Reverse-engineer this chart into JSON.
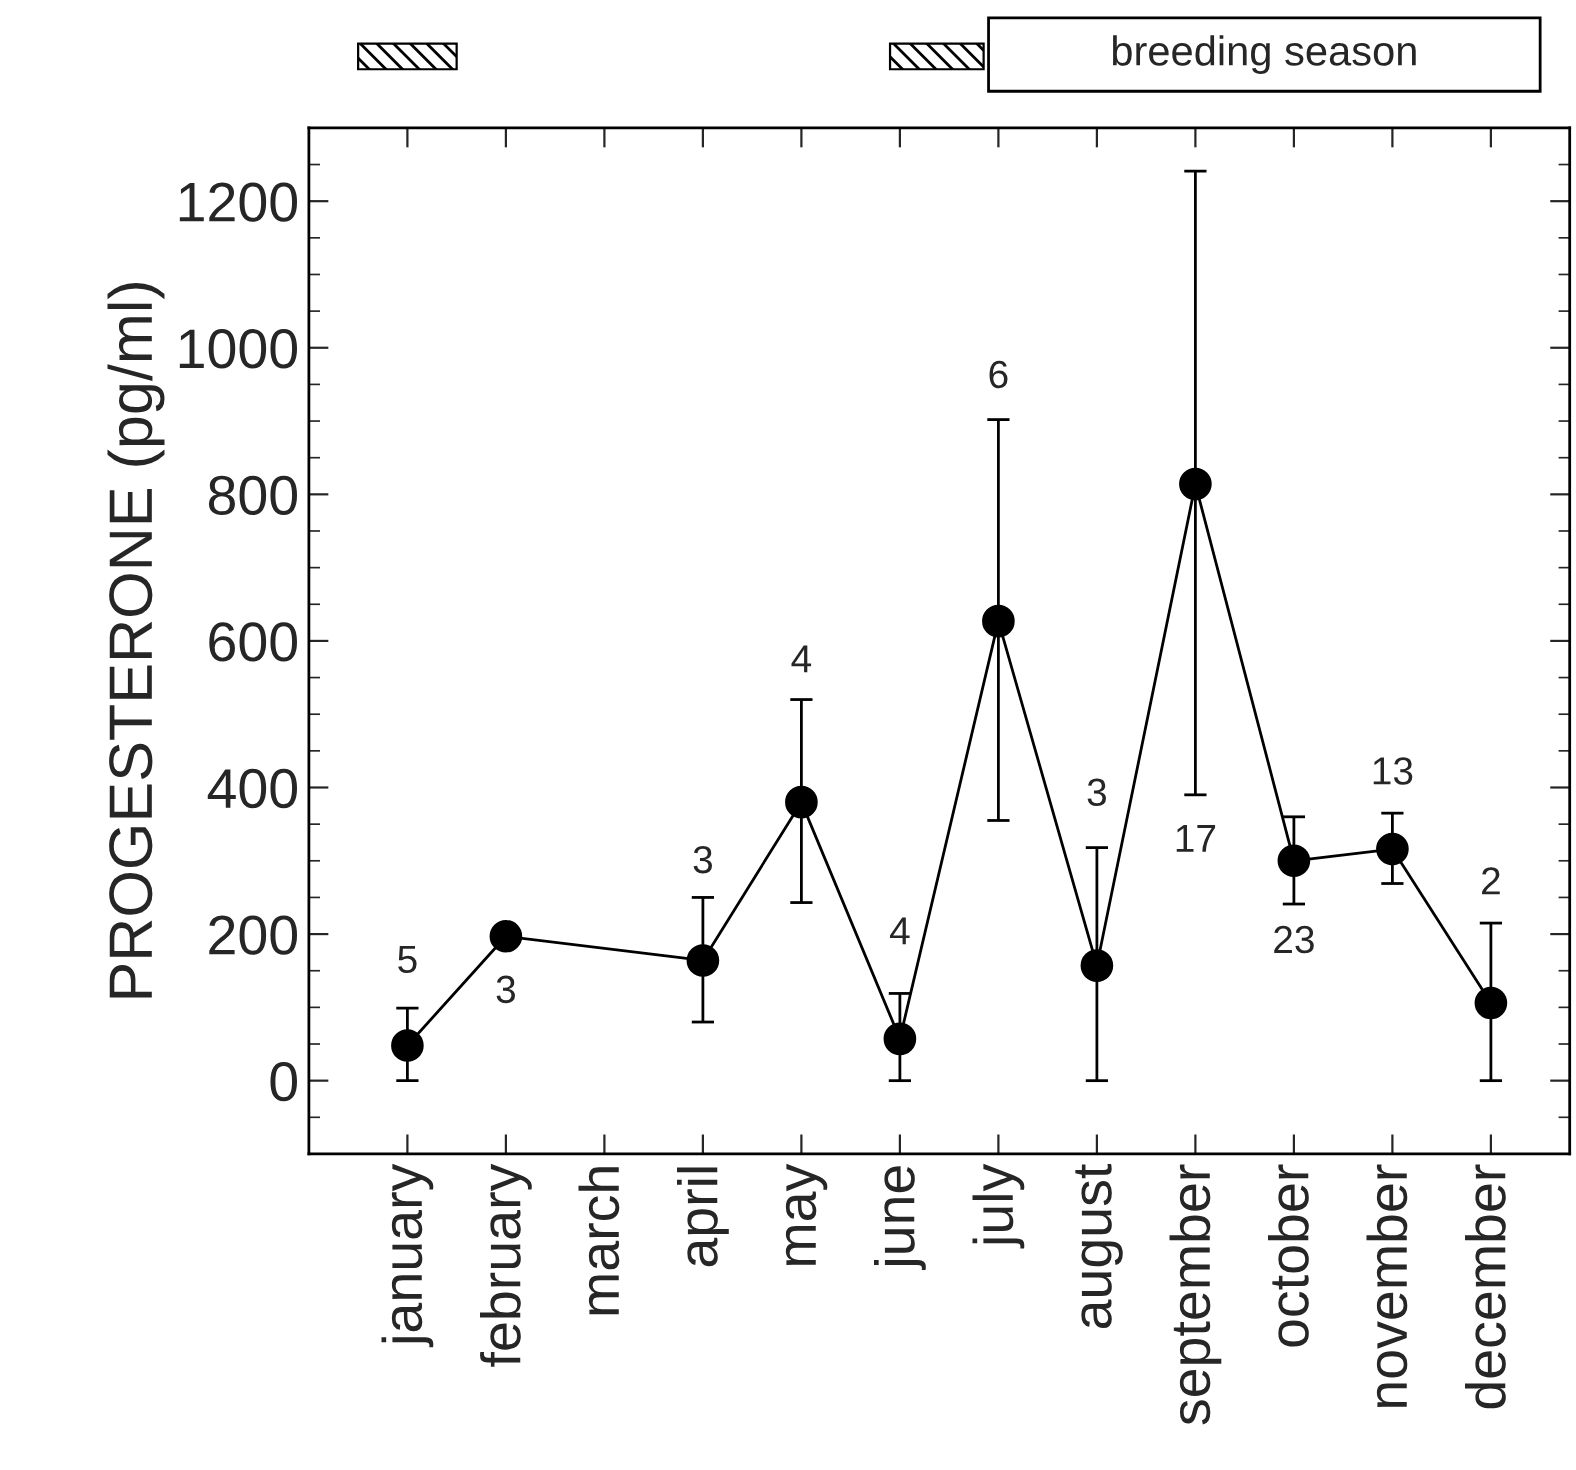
{
  "chart_data": {
    "type": "line",
    "ylabel": "PROGESTERONE (pg/ml)",
    "categories": [
      "january",
      "february",
      "march",
      "april",
      "may",
      "june",
      "july",
      "august",
      "september",
      "october",
      "november",
      "december"
    ],
    "values": [
      48,
      197,
      null,
      164,
      380,
      57,
      627,
      157,
      814,
      300,
      316,
      106
    ],
    "errors": [
      [
        0,
        99
      ],
      null,
      null,
      [
        80,
        250
      ],
      [
        243,
        520
      ],
      [
        0,
        119
      ],
      [
        355,
        902
      ],
      [
        0,
        318
      ],
      [
        390,
        1241
      ],
      [
        241,
        360
      ],
      [
        269,
        365
      ],
      [
        0,
        215
      ]
    ],
    "color": "#000000",
    "marker": "circle",
    "line_style": "solid",
    "ylim": [
      -100,
      1300
    ],
    "yticks": [
      0,
      200,
      400,
      600,
      800,
      1000,
      1200
    ],
    "annotations": [
      "5",
      "3",
      "3",
      "4",
      "4",
      "6",
      "3",
      "17",
      "23",
      "13",
      "2",
      "breeding season"
    ],
    "grid": false,
    "legend": false
  }
}
